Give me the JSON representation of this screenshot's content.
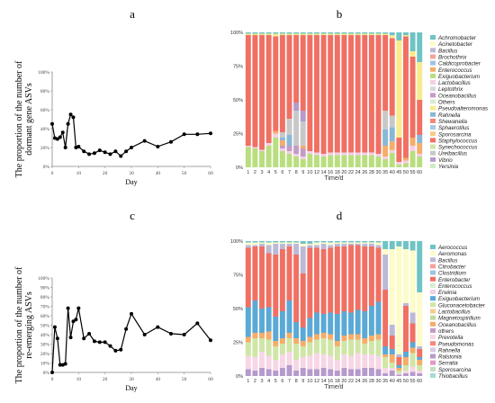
{
  "chart_data": [
    {
      "panel": "a",
      "type": "line",
      "xlabel": "Day",
      "ylabel": [
        "The proportion of the number of",
        "dormant gene ASVs"
      ],
      "xlim": [
        0,
        60
      ],
      "ylim": [
        0,
        100
      ],
      "x_ticks": [
        "0",
        "10",
        "20",
        "30",
        "40",
        "50",
        "60"
      ],
      "y_ticks": [
        "0%",
        "20%",
        "40%",
        "60%",
        "80%",
        "100%"
      ],
      "x": [
        0,
        1,
        2,
        3,
        4,
        5,
        6,
        7,
        8,
        9,
        10,
        12,
        14,
        16,
        18,
        20,
        22,
        24,
        26,
        28,
        30,
        35,
        40,
        45,
        50,
        55,
        60
      ],
      "y": [
        45,
        30,
        29,
        31,
        36,
        20,
        45,
        55,
        52,
        20,
        21,
        16,
        13,
        14,
        17,
        15,
        13,
        16,
        11,
        16,
        20,
        27,
        21,
        26,
        34,
        34,
        35
      ]
    },
    {
      "panel": "b",
      "type": "stacked_bar",
      "xlabel": "Time/d",
      "y_ticks": [
        "0%",
        "25%",
        "50%",
        "75%",
        "100%"
      ],
      "categories": [
        "1",
        "2",
        "3",
        "4",
        "5",
        "6",
        "7",
        "8",
        "9",
        "10",
        "12",
        "14",
        "16",
        "18",
        "20",
        "22",
        "24",
        "26",
        "28",
        "30",
        "35",
        "40",
        "45",
        "50",
        "55",
        "60"
      ],
      "colors": {
        "Achromobacter": "#6fc3c5",
        "Acinetobacter": "#fdfbc8",
        "Bacillus": "#bcb9d8",
        "Brochothrix": "#f4a39a",
        "Caldicoprobacter": "#9ec4e1",
        "Enterococcus": "#f5ad69",
        "Exiguobacterium": "#b9de7e",
        "Lactobacillus": "#f4cfe4",
        "Leptothrix": "#d8d8d8",
        "Oceanobacillus": "#c49bc6",
        "Others": "#d8ecd2",
        "Pseudoalteromonas": "#f7eb8c",
        "Rahnella": "#89b8d6",
        "Shewanella": "#f28979",
        "Sphaerotilus": "#a3c9e0",
        "Sporosarcina": "#f6cc8d",
        "Staphylococcus": "#f07063",
        "Synechococcus": "#cfe6a6",
        "Ureibacillus": "#c8c8c8",
        "Vibrio": "#b59acb",
        "Yersinia": "#d0ebc8"
      },
      "legend": [
        "Achromobacter",
        "Acinetobacter",
        "Bacillus",
        "Brochothrix",
        "Caldicoprobacter",
        "Enterococcus",
        "Exiguobacterium",
        "Lactobacillus",
        "Leptothrix",
        "Oceanobacillus",
        "Others",
        "Pseudoalteromonas",
        "Rahnella",
        "Shewanella",
        "Sphaerotilus",
        "Sporosarcina",
        "Staphylococcus",
        "Synechococcus",
        "Ureibacillus",
        "Vibrio",
        "Yersinia"
      ],
      "series": [
        {
          "name": "Exiguobacterium",
          "values": [
            15,
            14,
            12,
            16,
            22,
            12,
            10,
            8,
            6,
            10,
            9,
            8,
            9,
            9,
            9,
            9,
            9,
            9,
            9,
            8,
            6,
            10,
            2,
            3,
            12,
            8
          ]
        },
        {
          "name": "Lactobacillus",
          "values": [
            1,
            1,
            1,
            2,
            3,
            2,
            2,
            2,
            2,
            2,
            2,
            2,
            2,
            2,
            2,
            2,
            2,
            2,
            2,
            2,
            2,
            2,
            2,
            2,
            4,
            2
          ]
        },
        {
          "name": "Oceanobacillus",
          "values": [
            0,
            0,
            0,
            0,
            0,
            2,
            4,
            6,
            6,
            0,
            0,
            0,
            0,
            0,
            0,
            0,
            0,
            0,
            0,
            0,
            0,
            0,
            0,
            0,
            0,
            0
          ]
        },
        {
          "name": "Enterococcus",
          "values": [
            0,
            0,
            0,
            0,
            2,
            4,
            0,
            0,
            2,
            0,
            0,
            0,
            0,
            0,
            0,
            0,
            0,
            0,
            0,
            0,
            8,
            6,
            0,
            2,
            6,
            8
          ]
        },
        {
          "name": "Rahnella",
          "values": [
            0,
            0,
            0,
            0,
            0,
            2,
            8,
            0,
            0,
            0,
            0,
            0,
            0,
            0,
            0,
            0,
            0,
            0,
            0,
            0,
            12,
            10,
            0,
            0,
            0,
            6
          ]
        },
        {
          "name": "Ureibacillus",
          "values": [
            0,
            0,
            0,
            0,
            0,
            4,
            12,
            26,
            18,
            0,
            0,
            0,
            0,
            0,
            0,
            0,
            0,
            0,
            0,
            0,
            14,
            8,
            0,
            0,
            0,
            0
          ]
        },
        {
          "name": "Vibrio",
          "values": [
            0,
            0,
            0,
            0,
            0,
            0,
            0,
            6,
            8,
            0,
            0,
            0,
            0,
            0,
            0,
            0,
            0,
            0,
            0,
            0,
            0,
            0,
            0,
            0,
            0,
            0
          ]
        },
        {
          "name": "Staphylococcus",
          "values": [
            82,
            83,
            85,
            80,
            70,
            72,
            62,
            50,
            56,
            86,
            87,
            88,
            87,
            87,
            87,
            87,
            87,
            87,
            87,
            88,
            56,
            54,
            18,
            90,
            60,
            26
          ]
        },
        {
          "name": "Pseudoalteromonas",
          "values": [
            1,
            1,
            1,
            1,
            2,
            1,
            1,
            1,
            1,
            1,
            1,
            1,
            1,
            1,
            1,
            1,
            1,
            1,
            1,
            1,
            1,
            2,
            72,
            1,
            4,
            28
          ]
        },
        {
          "name": "Achromobacter",
          "values": [
            1,
            1,
            1,
            1,
            1,
            1,
            1,
            1,
            1,
            1,
            1,
            1,
            1,
            1,
            1,
            1,
            1,
            1,
            1,
            1,
            1,
            2,
            6,
            2,
            14,
            22
          ]
        }
      ]
    },
    {
      "panel": "c",
      "type": "line",
      "xlabel": "Day",
      "ylabel": [
        "The proportion of the number of",
        "re-emerging ASVs"
      ],
      "xlim": [
        0,
        60
      ],
      "ylim": [
        0,
        100
      ],
      "x_ticks": [
        "0",
        "10",
        "20",
        "30",
        "40",
        "50",
        "60"
      ],
      "y_ticks": [
        "0%",
        "10%",
        "20%",
        "30%",
        "40%",
        "50%",
        "60%",
        "70%",
        "80%",
        "90%",
        "100%"
      ],
      "x": [
        0,
        1,
        2,
        3,
        4,
        5,
        6,
        7,
        8,
        9,
        10,
        12,
        14,
        16,
        18,
        20,
        22,
        24,
        26,
        28,
        30,
        35,
        40,
        45,
        50,
        55,
        60
      ],
      "y": [
        0,
        48,
        36,
        8,
        8,
        9,
        68,
        37,
        54,
        56,
        68,
        36,
        41,
        33,
        32,
        32,
        28,
        23,
        24,
        46,
        62,
        40,
        48,
        41,
        40,
        52,
        34
      ]
    },
    {
      "panel": "d",
      "type": "stacked_bar",
      "xlabel": "Time/d",
      "y_ticks": [
        "0%",
        "25%",
        "50%",
        "75%",
        "100%"
      ],
      "categories": [
        "1",
        "2",
        "3",
        "4",
        "5",
        "6",
        "7",
        "8",
        "9",
        "10",
        "12",
        "14",
        "16",
        "18",
        "20",
        "22",
        "24",
        "26",
        "28",
        "30",
        "35",
        "40",
        "45",
        "50",
        "55",
        "60"
      ],
      "colors": {
        "Aerococcus": "#6fc3c5",
        "Aeromonas": "#fdfbc8",
        "Bacillus": "#bcb9d8",
        "Citrobacter": "#f4a39a",
        "Clostridium": "#9ec4e1",
        "Enterobacter": "#f07063",
        "Enterococcus": "#d8ecd2",
        "Erwinia": "#f4cfe4",
        "Exiguobacterium": "#5aa9d6",
        "Gluconacetobacter": "#cfe6a6",
        "Lactobacillus": "#f6cc8d",
        "Magnetospirillum": "#bfd9a6",
        "Oceanobacillus": "#f5ad69",
        "others": "#c49bc6",
        "Prevotella": "#f7d6e6",
        "Pseudomonas": "#f28979",
        "Rahnella": "#d8c9e6",
        "Ralstonia": "#b59acb",
        "Serratia": "#e09ac3",
        "Sporosarcina": "#c7ddc0",
        "Thiobacillus": "#a6dbd6"
      },
      "legend": [
        "Aerococcus",
        "Aeromonas",
        "Bacillus",
        "Citrobacter",
        "Clostridium",
        "Enterobacter",
        "Enterococcus",
        "Erwinia",
        "Exiguobacterium",
        "Gluconacetobacter",
        "Lactobacillus",
        "Magnetospirillum",
        "Oceanobacillus",
        "others",
        "Prevotella",
        "Pseudomonas",
        "Rahnella",
        "Ralstonia",
        "Serratia",
        "Sporosarcina",
        "Thiobacillus"
      ],
      "series": [
        {
          "name": "Ralstonia",
          "values": [
            5,
            4,
            6,
            5,
            4,
            6,
            8,
            4,
            6,
            5,
            5,
            6,
            5,
            4,
            6,
            5,
            5,
            6,
            6,
            5,
            2,
            4,
            1,
            2,
            3,
            2
          ]
        },
        {
          "name": "Prevotella",
          "values": [
            10,
            10,
            12,
            10,
            8,
            10,
            10,
            8,
            8,
            10,
            12,
            10,
            10,
            8,
            10,
            10,
            12,
            10,
            10,
            10,
            4,
            2,
            1,
            2,
            4,
            2
          ]
        },
        {
          "name": "Gluconacetobacter",
          "values": [
            10,
            14,
            10,
            12,
            10,
            8,
            10,
            12,
            8,
            10,
            10,
            12,
            12,
            10,
            10,
            12,
            10,
            8,
            10,
            12,
            8,
            4,
            2,
            4,
            10,
            4
          ]
        },
        {
          "name": "Oceanobacillus",
          "values": [
            4,
            4,
            4,
            6,
            4,
            4,
            4,
            4,
            4,
            4,
            4,
            4,
            4,
            4,
            4,
            4,
            4,
            4,
            4,
            4,
            2,
            6,
            2,
            6,
            4,
            4
          ]
        },
        {
          "name": "Exiguobacterium",
          "values": [
            22,
            24,
            18,
            18,
            18,
            20,
            24,
            12,
            10,
            14,
            16,
            14,
            16,
            20,
            18,
            16,
            18,
            20,
            22,
            24,
            6,
            4,
            2,
            4,
            4,
            2
          ]
        },
        {
          "name": "Enterobacter",
          "values": [
            44,
            40,
            46,
            40,
            46,
            46,
            40,
            50,
            40,
            52,
            48,
            48,
            48,
            50,
            48,
            50,
            48,
            48,
            44,
            40,
            42,
            10,
            6,
            34,
            14,
            6
          ]
        },
        {
          "name": "Bacillus",
          "values": [
            2,
            1,
            2,
            6,
            8,
            4,
            2,
            8,
            20,
            2,
            2,
            4,
            2,
            2,
            2,
            1,
            1,
            2,
            2,
            2,
            26,
            8,
            2,
            2,
            8,
            2
          ]
        },
        {
          "name": "Aeromonas",
          "values": [
            2,
            2,
            1,
            2,
            1,
            1,
            1,
            1,
            2,
            1,
            2,
            1,
            2,
            1,
            1,
            1,
            1,
            1,
            1,
            2,
            4,
            56,
            80,
            40,
            46,
            40
          ]
        },
        {
          "name": "Aerococcus",
          "values": [
            1,
            1,
            1,
            1,
            1,
            1,
            1,
            1,
            2,
            2,
            1,
            1,
            1,
            1,
            1,
            1,
            1,
            1,
            1,
            1,
            6,
            6,
            4,
            6,
            7,
            38
          ]
        }
      ]
    }
  ]
}
